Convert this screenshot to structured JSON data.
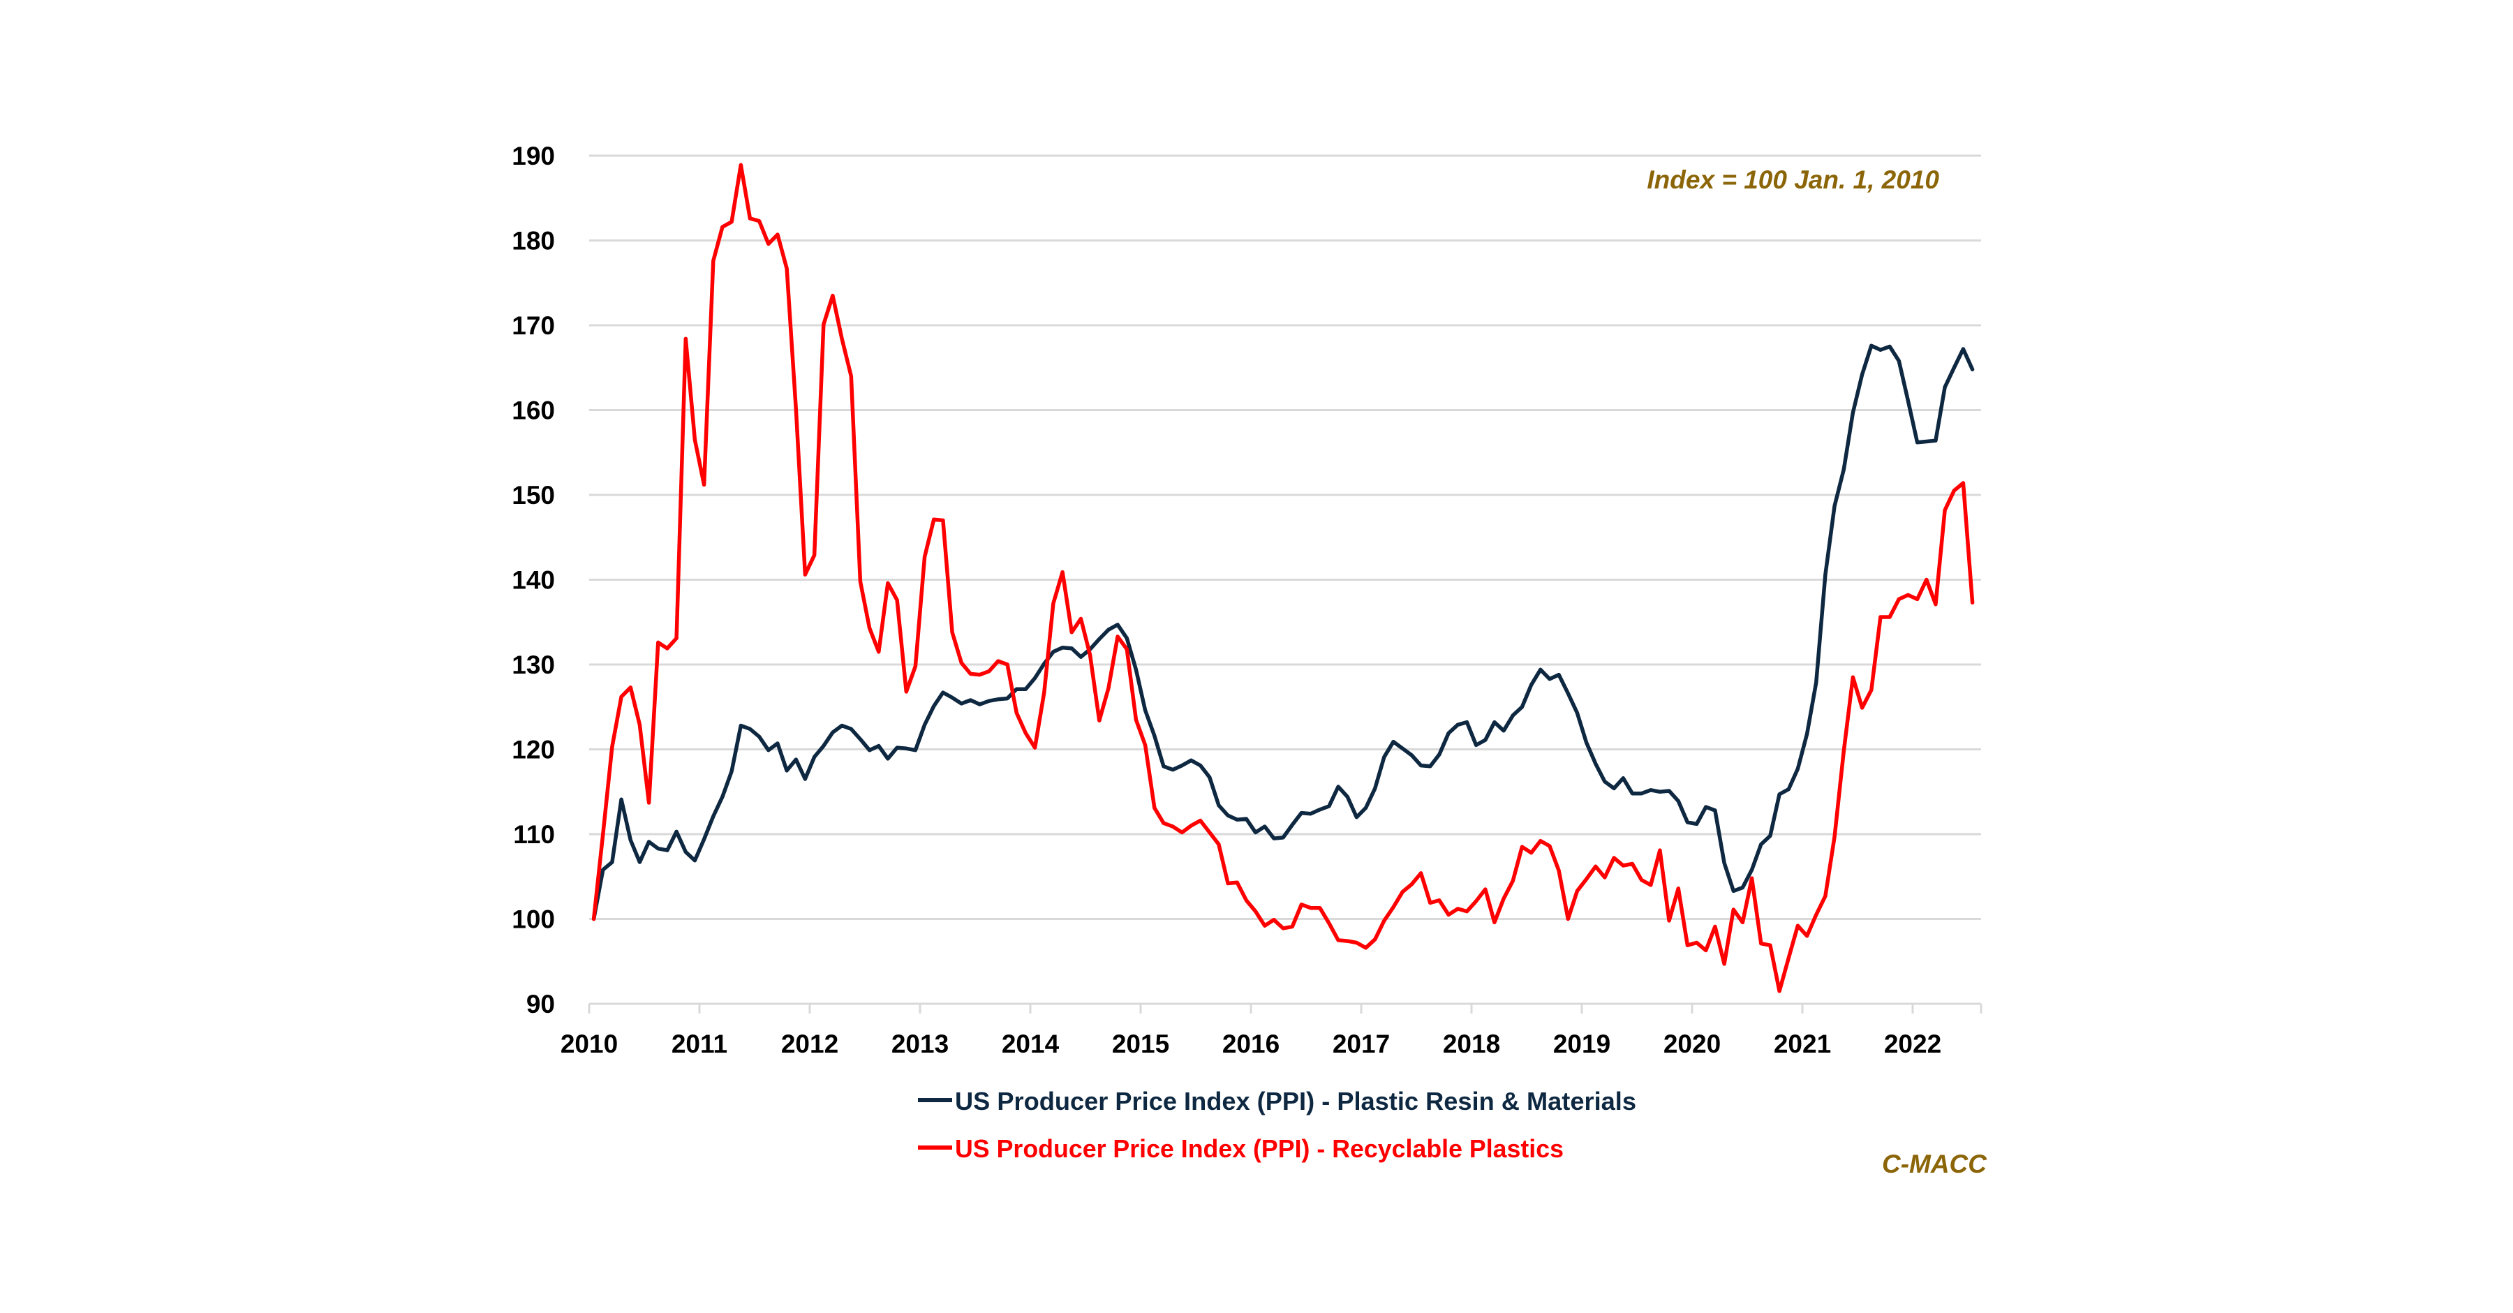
{
  "chart_data": {
    "type": "line",
    "title": "",
    "xlabel": "",
    "ylabel": "",
    "x_start": "2010-01",
    "frequency": "monthly",
    "x_tick_labels": [
      "2010",
      "2011",
      "2012",
      "2013",
      "2014",
      "2015",
      "2016",
      "2017",
      "2018",
      "2019",
      "2020",
      "2021",
      "2022"
    ],
    "y_tick_labels": [
      "90",
      "100",
      "110",
      "120",
      "130",
      "140",
      "150",
      "160",
      "170",
      "180",
      "190"
    ],
    "ylim": [
      90,
      190
    ],
    "xlim": [
      2010,
      2022.6
    ],
    "grid": "horizontal",
    "legend_position": "bottom",
    "annotations": [
      {
        "text": "Index = 100 Jan. 1, 2010",
        "position": "top-right",
        "color": "#8B6508"
      },
      {
        "text": "C-MACC",
        "position": "bottom-right",
        "color": "#8B6508"
      }
    ],
    "series": [
      {
        "name": "US Producer Price Index (PPI) - Plastic Resin & Materials",
        "color": "#0E2841",
        "values": [
          100,
          105.8,
          106.7,
          114.1,
          109.3,
          106.7,
          109.1,
          108.3,
          108.1,
          110.3,
          107.9,
          106.9,
          109.4,
          112.1,
          114.4,
          117.4,
          122.8,
          122.4,
          121.5,
          119.9,
          120.7,
          117.5,
          118.8,
          116.5,
          119.1,
          120.4,
          122.0,
          122.8,
          122.4,
          121.2,
          119.9,
          120.4,
          118.9,
          120.2,
          120.1,
          119.9,
          122.9,
          125.1,
          126.7,
          126.1,
          125.4,
          125.8,
          125.3,
          125.7,
          125.9,
          126.0,
          127.1,
          127.1,
          128.4,
          130.1,
          131.5,
          132.0,
          131.9,
          130.9,
          131.8,
          133.0,
          134.1,
          134.7,
          133.1,
          129.4,
          124.6,
          121.6,
          118.0,
          117.6,
          118.1,
          118.7,
          118.1,
          116.7,
          113.4,
          112.2,
          111.7,
          111.8,
          110.2,
          110.9,
          109.5,
          109.6,
          111.1,
          112.5,
          112.4,
          112.9,
          113.3,
          115.6,
          114.4,
          112.0,
          113.1,
          115.4,
          119.1,
          120.9,
          120.1,
          119.3,
          118.1,
          118.0,
          119.4,
          121.9,
          122.9,
          123.2,
          120.5,
          121.1,
          123.2,
          122.2,
          124.0,
          125.0,
          127.6,
          129.4,
          128.3,
          128.8,
          126.6,
          124.3,
          120.8,
          118.3,
          116.2,
          115.4,
          116.6,
          114.8,
          114.8,
          115.2,
          115.0,
          115.1,
          113.9,
          111.4,
          111.2,
          113.2,
          112.8,
          106.6,
          103.3,
          103.7,
          105.8,
          108.8,
          109.8,
          114.7,
          115.3,
          117.7,
          121.8,
          127.9,
          140.6,
          148.7,
          153.0,
          159.7,
          164.2,
          167.6,
          167.1,
          167.5,
          165.8,
          161.1,
          156.2,
          156.3,
          156.4,
          162.7,
          165.0,
          167.2,
          164.8
        ]
      },
      {
        "name": "US Producer Price Index (PPI) - Recyclable Plastics",
        "color": "#FF0000",
        "values": [
          100,
          110.0,
          120.3,
          126.2,
          127.3,
          122.9,
          113.7,
          132.6,
          131.9,
          133.1,
          168.4,
          156.5,
          151.2,
          177.6,
          181.6,
          182.2,
          188.9,
          182.6,
          182.3,
          179.6,
          180.7,
          176.7,
          160.1,
          140.6,
          142.9,
          170.1,
          173.5,
          168.4,
          164.0,
          139.8,
          134.3,
          131.5,
          139.6,
          137.6,
          126.8,
          129.8,
          142.7,
          147.1,
          147.0,
          133.8,
          130.2,
          128.9,
          128.8,
          129.2,
          130.4,
          130.0,
          124.3,
          121.9,
          120.2,
          126.7,
          137.2,
          140.9,
          133.8,
          135.4,
          131.1,
          123.4,
          127.2,
          133.3,
          131.8,
          123.5,
          120.5,
          113.1,
          111.3,
          110.9,
          110.2,
          111.0,
          111.6,
          110.2,
          108.8,
          104.2,
          104.3,
          102.2,
          100.9,
          99.2,
          99.9,
          98.9,
          99.1,
          101.7,
          101.3,
          101.3,
          99.5,
          97.5,
          97.4,
          97.2,
          96.6,
          97.6,
          99.8,
          101.4,
          103.2,
          104.1,
          105.4,
          101.9,
          102.2,
          100.5,
          101.2,
          100.9,
          102.1,
          103.5,
          99.6,
          102.4,
          104.5,
          108.5,
          107.8,
          109.2,
          108.6,
          105.7,
          100.0,
          103.3,
          104.7,
          106.2,
          104.9,
          107.2,
          106.3,
          106.5,
          104.6,
          104.0,
          108.1,
          99.8,
          103.6,
          96.9,
          97.2,
          96.3,
          99.1,
          94.7,
          101.1,
          99.6,
          104.8,
          97.1,
          96.9,
          91.5,
          95.4,
          99.2,
          98.0,
          100.5,
          102.7,
          109.7,
          119.8,
          128.5,
          124.9,
          127.0,
          135.6,
          135.6,
          137.7,
          138.2,
          137.7,
          140.0,
          137.1,
          148.2,
          150.5,
          151.4,
          137.3
        ]
      }
    ]
  },
  "annotation": {
    "index_note": "Index = 100 Jan. 1, 2010",
    "source": "C-MACC"
  },
  "legend": {
    "items": [
      {
        "label": "US Producer Price Index (PPI) - Plastic Resin & Materials",
        "color": "#0E2841"
      },
      {
        "label": "US Producer Price Index (PPI) - Recyclable Plastics",
        "color": "#FF0000"
      }
    ]
  }
}
